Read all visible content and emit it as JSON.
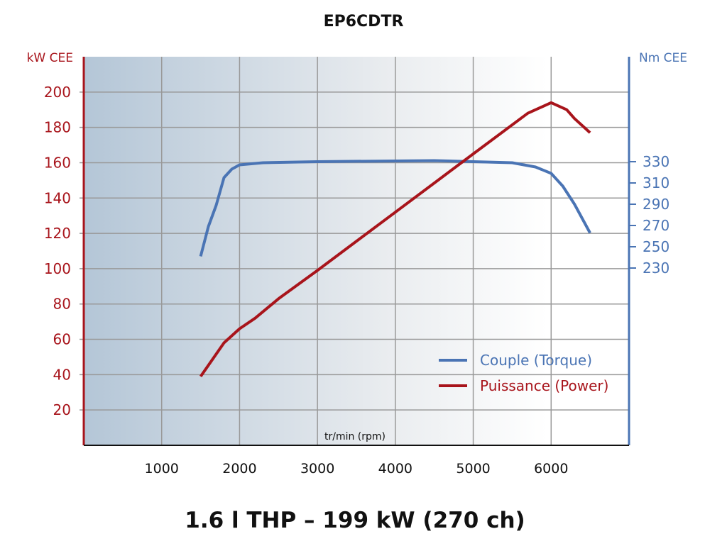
{
  "chart_data": {
    "type": "line",
    "title": "EP6CDTR",
    "subtitle": "1.6 l THP – 199 kW (270 ch)",
    "xlabel": "tr/min (rpm)",
    "xlim": [
      0,
      7000
    ],
    "xticks": [
      1000,
      2000,
      3000,
      4000,
      5000,
      6000
    ],
    "y_left": {
      "label": "kW CEE",
      "ylim": [
        0,
        220
      ],
      "ticks": [
        20,
        40,
        60,
        80,
        100,
        120,
        140,
        160,
        180,
        200
      ],
      "color": "#a8141b"
    },
    "y_right": {
      "label": "Nm CEE",
      "ylim": [
        63.3,
        428.7
      ],
      "ticks": [
        230,
        250,
        270,
        290,
        310,
        330
      ],
      "color": "#4a74b4"
    },
    "grid": true,
    "legend": "bottom-right",
    "series": [
      {
        "name": "Couple (Torque)",
        "axis": "right",
        "color": "#4a74b4",
        "x": [
          1500,
          1600,
          1700,
          1800,
          1900,
          2000,
          2300,
          3000,
          4500,
          5500,
          5800,
          6000,
          6150,
          6300,
          6500
        ],
        "y": [
          241,
          269,
          289,
          315,
          323,
          327,
          329,
          330,
          331,
          329,
          325,
          319,
          307,
          290,
          263
        ]
      },
      {
        "name": "Puissance (Power)",
        "axis": "left",
        "color": "#a8141b",
        "x": [
          1500,
          1800,
          2000,
          2200,
          2500,
          3000,
          4000,
          5000,
          5700,
          6000,
          6200,
          6300,
          6500
        ],
        "y": [
          39,
          58,
          66,
          72,
          83,
          99,
          132,
          165,
          188,
          194,
          190,
          185,
          177
        ]
      }
    ]
  }
}
